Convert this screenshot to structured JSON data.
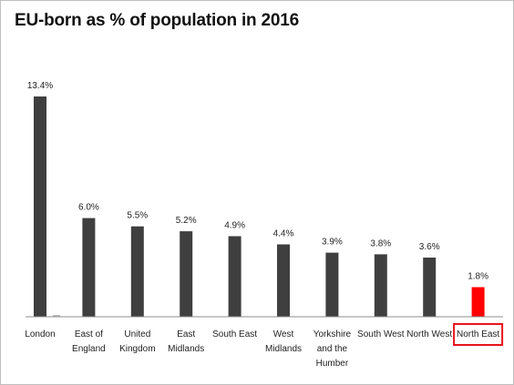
{
  "chart_data": {
    "type": "bar",
    "title": "EU-born as % of population in 2016",
    "categories": [
      "London",
      "East of England",
      "United Kingdom",
      "East Midlands",
      "South East",
      "West Midlands",
      "Yorkshire and the Humber",
      "South West",
      "North West",
      "North East"
    ],
    "category_lines": [
      [
        "London"
      ],
      [
        "East of",
        "England"
      ],
      [
        "United",
        "Kingdom"
      ],
      [
        "East",
        "Midlands"
      ],
      [
        "South East"
      ],
      [
        "West",
        "Midlands"
      ],
      [
        "Yorkshire",
        "and the",
        "Humber"
      ],
      [
        "South West"
      ],
      [
        "North West"
      ],
      [
        "North East"
      ]
    ],
    "values": [
      13.4,
      6.0,
      5.5,
      5.2,
      4.9,
      4.4,
      3.9,
      3.8,
      3.6,
      1.8
    ],
    "value_labels": [
      "13.4%",
      "6.0%",
      "5.5%",
      "5.2%",
      "4.9%",
      "4.4%",
      "3.9%",
      "3.8%",
      "3.6%",
      "1.8%"
    ],
    "ylim": [
      0,
      13.4
    ],
    "grid": false,
    "highlight_index": 9,
    "colors": {
      "bar": "#3f3f3f",
      "highlight": "#ff0000",
      "highlight_box": "#e8141b",
      "axis": "#8c8c8c"
    }
  }
}
